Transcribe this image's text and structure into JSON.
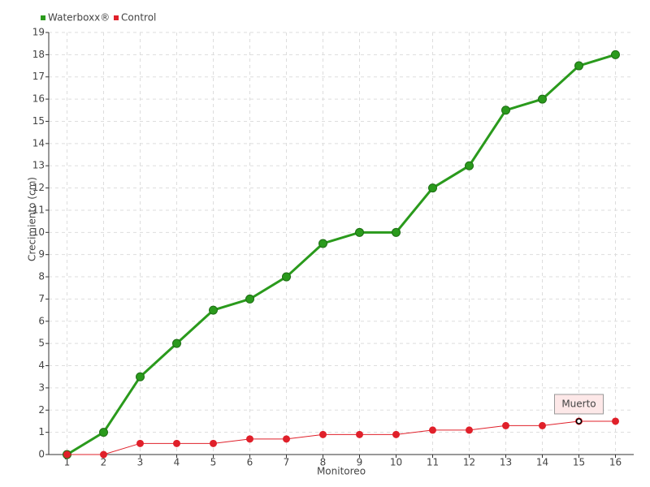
{
  "chart_data": {
    "type": "line",
    "x_label": "Monitoreo",
    "y_label": "Crecimiento (cm)",
    "categories": [
      "1",
      "2",
      "3",
      "4",
      "5",
      "6",
      "7",
      "8",
      "9",
      "10",
      "11",
      "12",
      "13",
      "14",
      "15",
      "16"
    ],
    "series": [
      {
        "name": "Waterboxx®",
        "color": "#2a9a1c",
        "values": [
          0,
          1,
          3.5,
          5,
          6.5,
          7,
          8,
          9.5,
          10,
          10,
          12,
          13,
          15.5,
          16,
          17.5,
          18
        ]
      },
      {
        "name": "Control",
        "color": "#e0202a",
        "values": [
          0,
          0,
          0.5,
          0.5,
          0.5,
          0.7,
          0.7,
          0.9,
          0.9,
          0.9,
          1.1,
          1.1,
          1.3,
          1.3,
          1.5,
          1.5
        ]
      }
    ],
    "ylim": [
      0,
      19
    ],
    "yticks": [
      0,
      1,
      2,
      3,
      4,
      5,
      6,
      7,
      8,
      9,
      10,
      11,
      12,
      13,
      14,
      15,
      16,
      17,
      18,
      19
    ],
    "grid": true,
    "annotations": [
      {
        "text": "Muerto",
        "x": "15",
        "series": "Control"
      }
    ]
  }
}
